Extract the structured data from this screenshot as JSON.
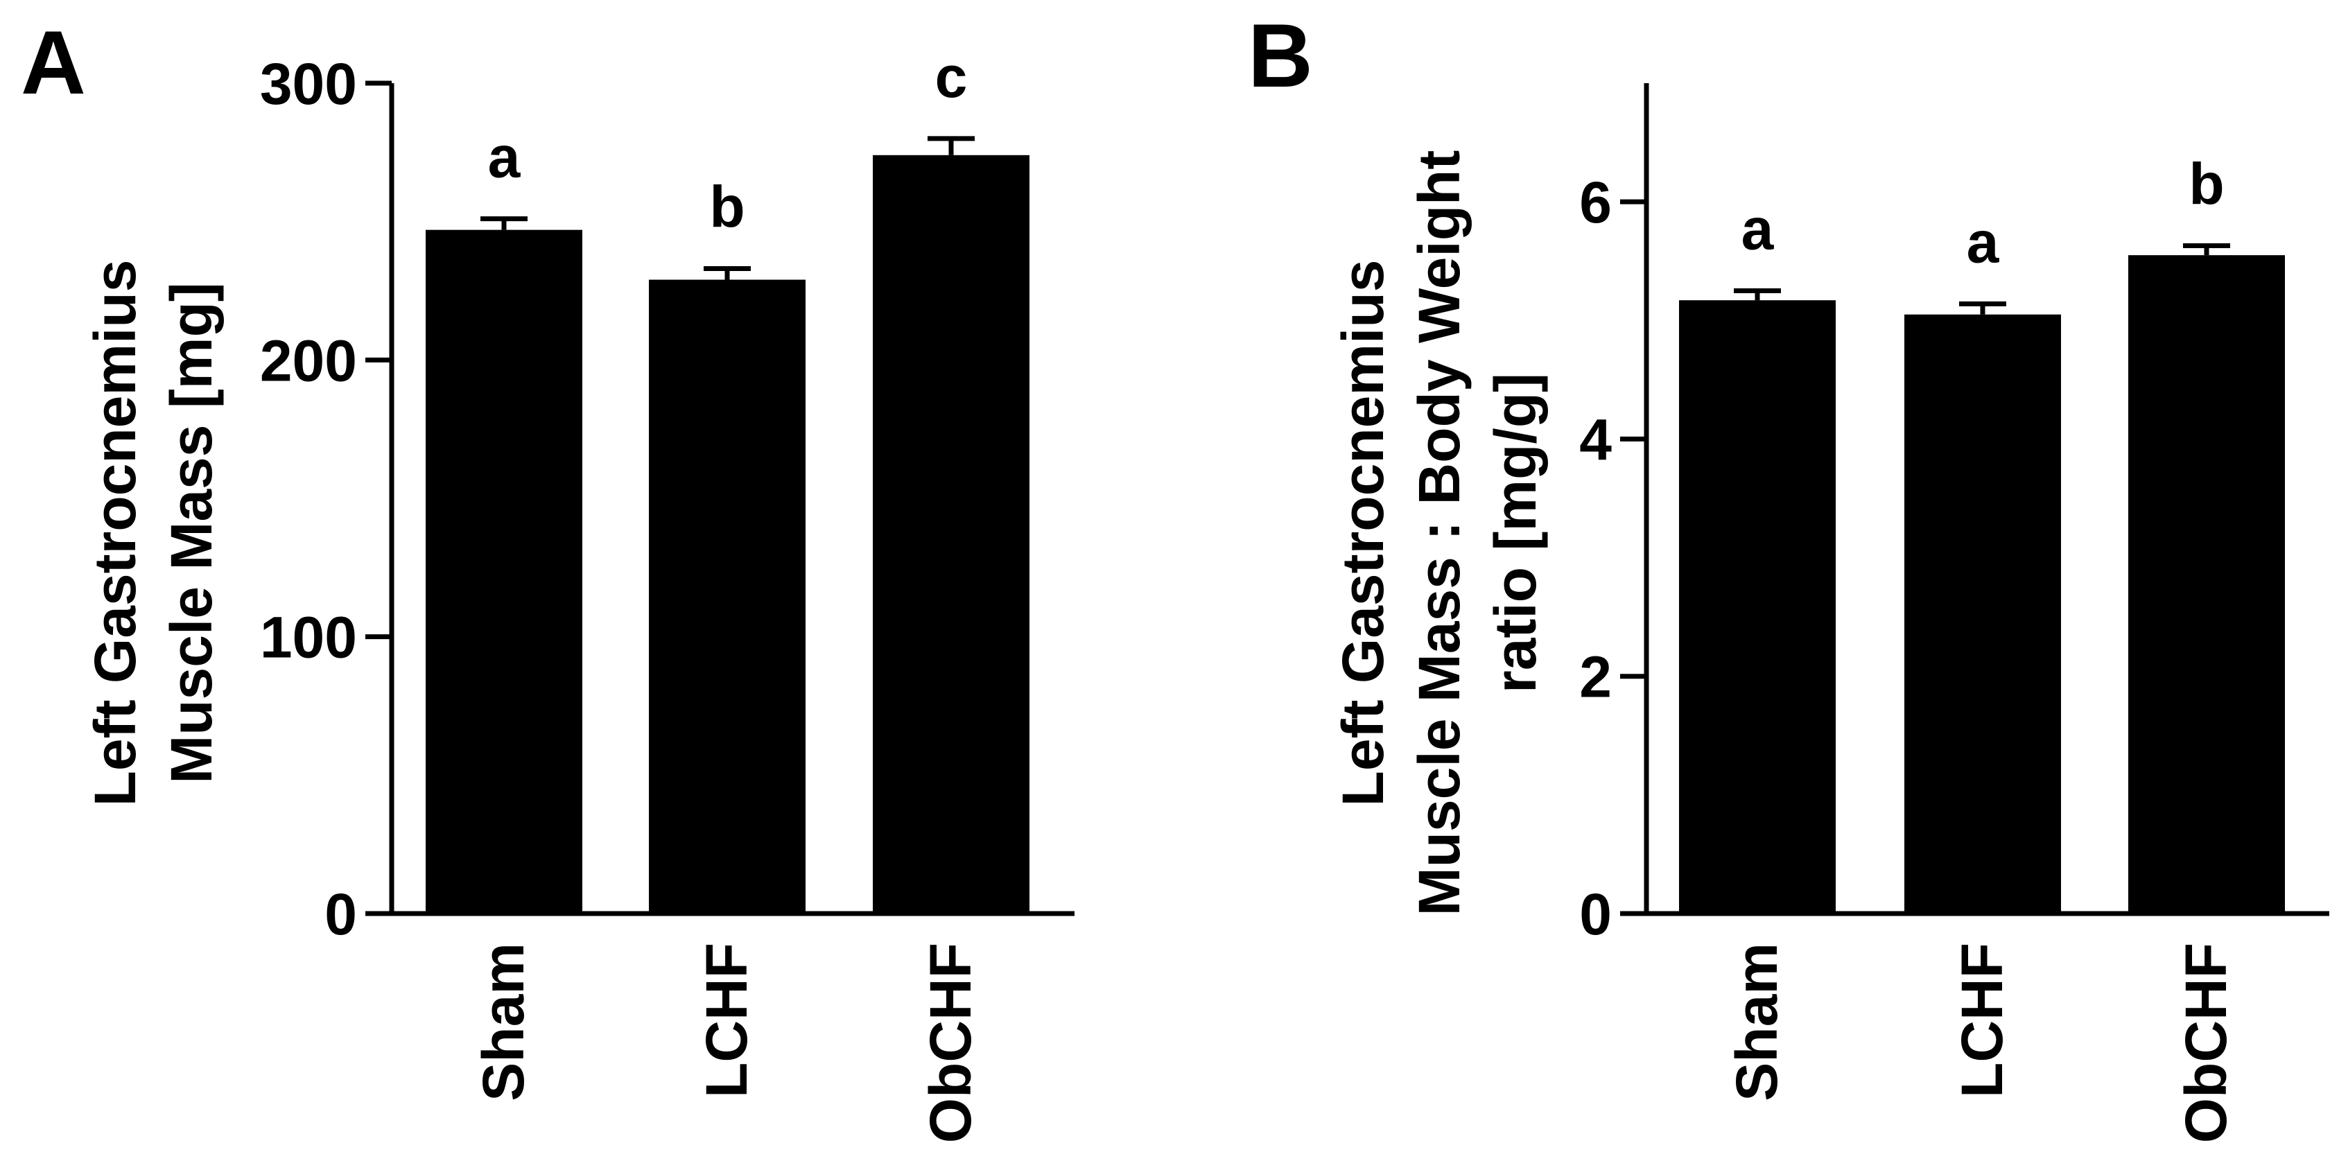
{
  "chart_data": [
    {
      "type": "bar",
      "panel_label": "A",
      "categories": [
        "Sham",
        "LCHF",
        "ObCHF"
      ],
      "values": [
        247,
        229,
        274
      ],
      "errors": [
        4,
        4,
        6
      ],
      "significance": [
        "a",
        "b",
        "c"
      ],
      "ylabel_lines": [
        "Left Gastrocnemius",
        "Muscle Mass [mg]"
      ],
      "xlabel": "",
      "ylim": [
        0,
        300
      ],
      "yticks": [
        "0",
        "100",
        "200",
        "300"
      ],
      "ytick_values": [
        0,
        100,
        200,
        300
      ],
      "grid": false,
      "bar_color": "#000000"
    },
    {
      "type": "bar",
      "panel_label": "B",
      "categories": [
        "Sham",
        "LCHF",
        "ObCHF"
      ],
      "values": [
        5.17,
        5.05,
        5.55
      ],
      "errors": [
        0.08,
        0.09,
        0.08
      ],
      "significance": [
        "a",
        "a",
        "b"
      ],
      "ylabel_lines": [
        "Left Gastrocnemius",
        "Muscle Mass : Body Weight",
        "ratio [mg/g]"
      ],
      "xlabel": "",
      "ylim": [
        0,
        7
      ],
      "yticks": [
        "0",
        "2",
        "4",
        "6"
      ],
      "ytick_values": [
        0,
        2,
        4,
        6
      ],
      "grid": false,
      "bar_color": "#000000"
    }
  ]
}
